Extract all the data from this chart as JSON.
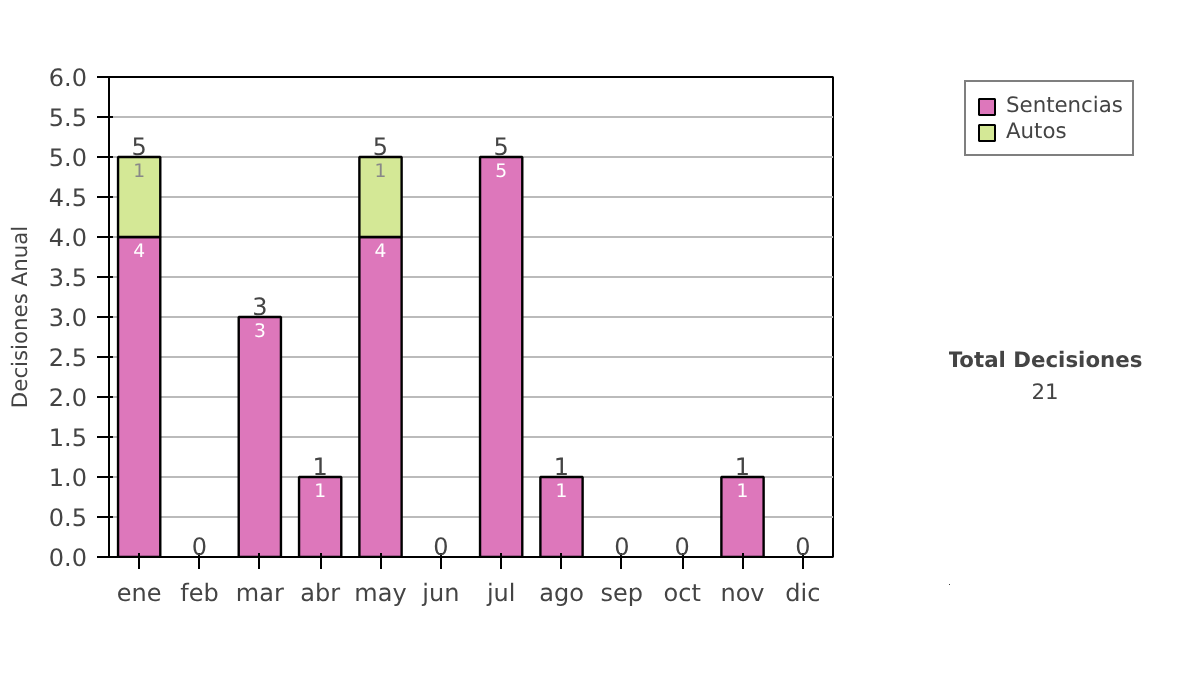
{
  "chart_data": {
    "type": "bar",
    "stacked": true,
    "ylabel": "Decisiones Anual",
    "categories": [
      "ene",
      "feb",
      "mar",
      "abr",
      "may",
      "jun",
      "jul",
      "ago",
      "sep",
      "oct",
      "nov",
      "dic"
    ],
    "series": [
      {
        "name": "Sentencias",
        "color": "#dd77bb",
        "values": [
          4,
          0,
          3,
          1,
          4,
          0,
          5,
          1,
          0,
          0,
          1,
          0
        ],
        "value_labels": [
          "4",
          null,
          "3",
          "1",
          "4",
          null,
          "5",
          "1",
          null,
          null,
          "1",
          null
        ]
      },
      {
        "name": "Autos",
        "color": "#d4e896",
        "values": [
          1,
          0,
          0,
          0,
          1,
          0,
          0,
          0,
          0,
          0,
          0,
          0
        ],
        "value_labels": [
          "1",
          null,
          null,
          null,
          "1",
          null,
          null,
          null,
          null,
          null,
          null,
          null
        ]
      }
    ],
    "totals": [
      "5",
      "0",
      "3",
      "1",
      "5",
      "0",
      "5",
      "1",
      "0",
      "0",
      "1",
      "0"
    ],
    "ylim": [
      0,
      6
    ],
    "yticks": [
      {
        "value": 0,
        "label": "0.0"
      },
      {
        "value": 0.5,
        "label": "0.5"
      },
      {
        "value": 1,
        "label": "1.0"
      },
      {
        "value": 1.5,
        "label": "1.5"
      },
      {
        "value": 2,
        "label": "2.0"
      },
      {
        "value": 2.5,
        "label": "2.5"
      },
      {
        "value": 3,
        "label": "3.0"
      },
      {
        "value": 3.5,
        "label": "3.5"
      },
      {
        "value": 4,
        "label": "4.0"
      },
      {
        "value": 4.5,
        "label": "4.5"
      },
      {
        "value": 5,
        "label": "5.0"
      },
      {
        "value": 5.5,
        "label": "5.5"
      },
      {
        "value": 6,
        "label": "6.0"
      }
    ],
    "grid": "y",
    "legend": "right",
    "annotations": [
      "Total Decisiones",
      "21"
    ]
  }
}
